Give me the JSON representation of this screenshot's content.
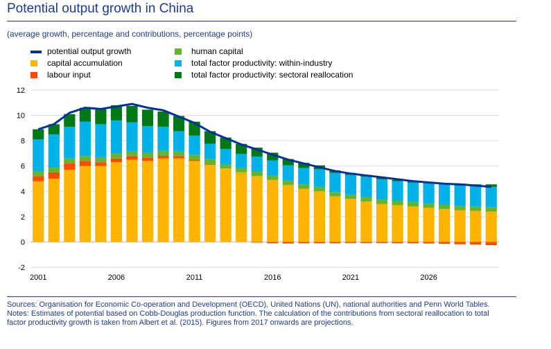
{
  "header": {
    "title": "Potential output growth in China",
    "subtitle": "(average growth, percentage and contributions, percentage points)"
  },
  "footer": {
    "sources": "Sources: Organisation for Economic Co-operation and Development (OECD), United Nations (UN), national authorities and Penn World Tables.",
    "notes": "Notes: Estimates of potential based on Cobb-Douglas production function. The calculation of the contributions from sectoral reallocation to total factor productivity growth is taken from Albert et al. (2015). Figures from 2017 onwards are projections."
  },
  "chart_data": {
    "type": "bar",
    "stacked": true,
    "x": [
      2001,
      2002,
      2003,
      2004,
      2005,
      2006,
      2007,
      2008,
      2009,
      2010,
      2011,
      2012,
      2013,
      2014,
      2015,
      2016,
      2017,
      2018,
      2019,
      2020,
      2021,
      2022,
      2023,
      2024,
      2025,
      2026,
      2027,
      2028,
      2029,
      2030
    ],
    "xticks": [
      "2001",
      "2006",
      "2011",
      "2016",
      "2021",
      "2026"
    ],
    "ylim": [
      -2,
      12
    ],
    "yticks": [
      -2,
      0,
      2,
      4,
      6,
      8,
      10,
      12
    ],
    "grid": true,
    "legend_placement": "top-left",
    "series": [
      {
        "name": "capital accumulation",
        "color": "#ffb400",
        "values": [
          4.8,
          5.0,
          5.7,
          6.0,
          6.0,
          6.3,
          6.5,
          6.4,
          6.6,
          6.6,
          6.4,
          6.1,
          5.8,
          5.5,
          5.2,
          4.9,
          4.5,
          4.2,
          4.0,
          3.6,
          3.4,
          3.2,
          3.0,
          2.9,
          2.8,
          2.7,
          2.6,
          2.5,
          2.45,
          2.4
        ]
      },
      {
        "name": "labour input",
        "color": "#ff4b00",
        "values": [
          0.4,
          0.5,
          0.5,
          0.4,
          0.3,
          0.3,
          0.25,
          0.25,
          0.2,
          0.15,
          0.1,
          0.05,
          0.0,
          0.0,
          -0.05,
          -0.1,
          -0.12,
          -0.1,
          -0.1,
          -0.1,
          -0.08,
          -0.08,
          -0.08,
          -0.1,
          -0.1,
          -0.12,
          -0.15,
          -0.18,
          -0.2,
          -0.25
        ]
      },
      {
        "name": "human capital",
        "color": "#65b32e",
        "values": [
          0.4,
          0.4,
          0.4,
          0.4,
          0.4,
          0.4,
          0.4,
          0.4,
          0.4,
          0.4,
          0.4,
          0.4,
          0.35,
          0.35,
          0.35,
          0.35,
          0.35,
          0.35,
          0.35,
          0.35,
          0.35,
          0.35,
          0.35,
          0.35,
          0.35,
          0.35,
          0.35,
          0.35,
          0.35,
          0.35
        ]
      },
      {
        "name": "total factor productivity: within-industry",
        "color": "#00b1ea",
        "values": [
          2.5,
          2.6,
          2.5,
          2.7,
          2.6,
          2.6,
          2.3,
          2.1,
          1.9,
          1.6,
          1.5,
          1.2,
          1.2,
          1.1,
          1.2,
          1.2,
          1.2,
          1.3,
          1.4,
          1.5,
          1.55,
          1.6,
          1.6,
          1.55,
          1.55,
          1.6,
          1.6,
          1.6,
          1.6,
          1.6
        ]
      },
      {
        "name": "total factor productivity: sectoral reallocation",
        "color": "#007816",
        "values": [
          0.8,
          0.8,
          1.0,
          1.1,
          1.2,
          1.2,
          1.3,
          1.3,
          1.2,
          1.2,
          1.1,
          1.0,
          0.9,
          0.8,
          0.7,
          0.6,
          0.5,
          0.4,
          0.3,
          0.2,
          0.15,
          0.15,
          0.15,
          0.1,
          0.1,
          0.1,
          0.1,
          0.15,
          0.15,
          0.2
        ]
      },
      {
        "name": "potential output growth",
        "color": "#003299",
        "type": "line",
        "values": [
          8.9,
          9.3,
          10.2,
          10.6,
          10.5,
          10.7,
          10.9,
          10.6,
          10.4,
          9.9,
          9.4,
          8.7,
          8.2,
          7.7,
          7.3,
          6.9,
          6.5,
          6.2,
          5.9,
          5.6,
          5.4,
          5.25,
          5.1,
          4.95,
          4.8,
          4.7,
          4.6,
          4.55,
          4.45,
          4.35
        ]
      }
    ]
  }
}
